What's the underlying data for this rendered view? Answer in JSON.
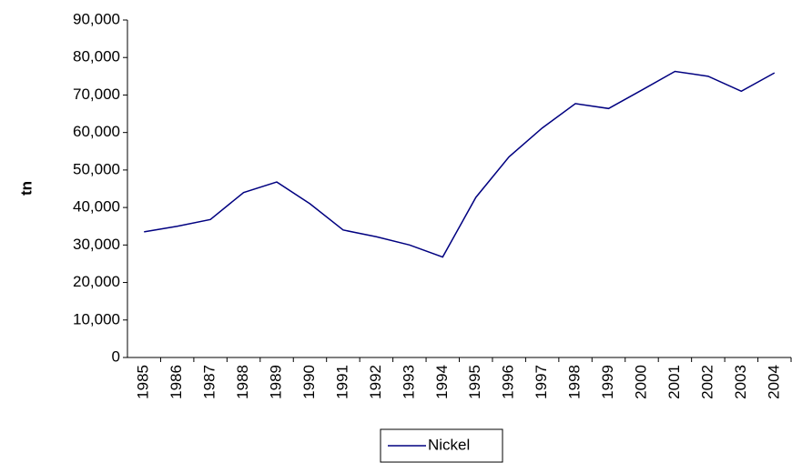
{
  "chart_data": {
    "type": "line",
    "y_label": "tn",
    "categories": [
      "1985",
      "1986",
      "1987",
      "1988",
      "1989",
      "1990",
      "1991",
      "1992",
      "1993",
      "1994",
      "1995",
      "1996",
      "1997",
      "1998",
      "1999",
      "2000",
      "2001",
      "2002",
      "2003",
      "2004"
    ],
    "series": [
      {
        "name": "Nickel",
        "color": "#000080",
        "values": [
          33500,
          35000,
          36800,
          44000,
          46800,
          41000,
          34000,
          32200,
          30000,
          26800,
          42700,
          53500,
          61200,
          67700,
          66400,
          71300,
          76300,
          75000,
          71000,
          75900
        ]
      }
    ],
    "ylim": [
      0,
      90000
    ],
    "yticks": [
      0,
      {
        "value": 10000,
        "label": "10,000"
      },
      {
        "value": 20000,
        "label": "20,000"
      },
      {
        "value": 30000,
        "label": "30,000"
      },
      {
        "value": 40000,
        "label": "40,000"
      },
      {
        "value": 50000,
        "label": "50,000"
      },
      {
        "value": 60000,
        "label": "60,000"
      },
      {
        "value": 70000,
        "label": "70,000"
      },
      {
        "value": 80000,
        "label": "80,000"
      },
      {
        "value": 90000,
        "label": "90,000"
      }
    ],
    "grid": false,
    "legend": "bottom"
  }
}
